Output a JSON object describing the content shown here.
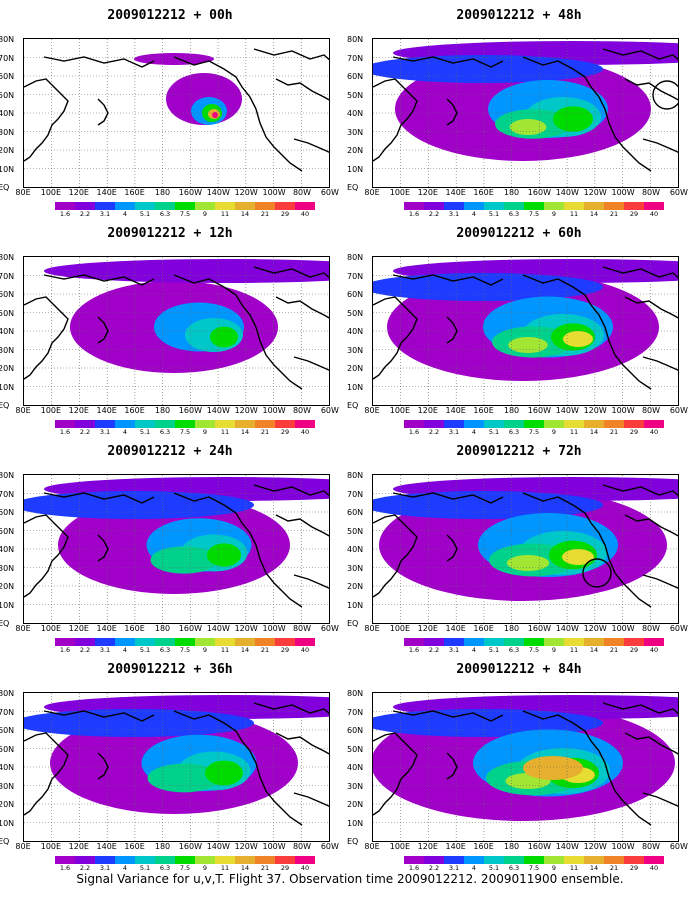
{
  "panels": [
    {
      "title": "2009012212 + 00h",
      "intensity": 0.15,
      "hotspot": true
    },
    {
      "title": "2009012212 + 12h",
      "intensity": 0.3,
      "hotspot": false
    },
    {
      "title": "2009012212 + 24h",
      "intensity": 0.45,
      "hotspot": false
    },
    {
      "title": "2009012212 + 36h",
      "intensity": 0.55,
      "hotspot": false
    },
    {
      "title": "2009012212 + 48h",
      "intensity": 0.6,
      "hotspot": false,
      "circle": true
    },
    {
      "title": "2009012212 + 60h",
      "intensity": 0.7,
      "hotspot": false
    },
    {
      "title": "2009012212 + 72h",
      "intensity": 0.8,
      "hotspot": false,
      "circle": true
    },
    {
      "title": "2009012212 + 84h",
      "intensity": 0.9,
      "hotspot": false
    }
  ],
  "lat_labels": [
    "80N",
    "70N",
    "60N",
    "50N",
    "40N",
    "30N",
    "20N",
    "10N",
    "EQ"
  ],
  "lon_labels": [
    "80E",
    "100E",
    "120E",
    "140E",
    "160E",
    "180",
    "160W",
    "140W",
    "120W",
    "100W",
    "80W",
    "60W"
  ],
  "colorbar": {
    "levels": [
      "1.6",
      "2.2",
      "3.1",
      "4",
      "5.1",
      "6.3",
      "7.5",
      "9",
      "11",
      "14",
      "21",
      "29",
      "40"
    ],
    "colors": [
      "#a000c8",
      "#8200dc",
      "#1e3cff",
      "#0096ff",
      "#00c8c8",
      "#00d28c",
      "#00dc00",
      "#a0e632",
      "#e6dc32",
      "#e6af2d",
      "#f08228",
      "#fa3c3c",
      "#f00082"
    ]
  },
  "caption": "Signal Variance for u,v,T. Flight 37. Observation time 2009012212. 2009011900 ensemble."
}
